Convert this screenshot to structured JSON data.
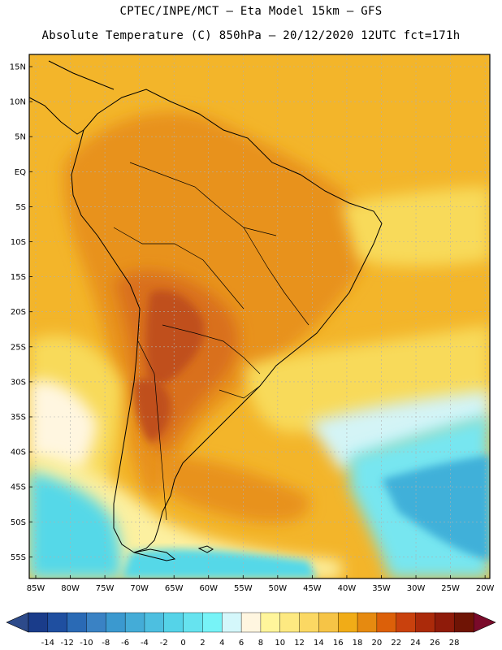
{
  "header": {
    "line1": "CPTEC/INPE/MCT —  Eta Model 15km — GFS",
    "line2": "Absolute Temperature (C) 850hPa — 20/12/2020 12UTC fct=171h"
  },
  "axes": {
    "lat_labels": [
      "15N",
      "10N",
      "5N",
      "EQ",
      "5S",
      "10S",
      "15S",
      "20S",
      "25S",
      "30S",
      "35S",
      "40S",
      "45S",
      "50S",
      "55S"
    ],
    "lon_labels": [
      "85W",
      "80W",
      "75W",
      "70W",
      "65W",
      "60W",
      "55W",
      "50W",
      "45W",
      "40W",
      "35W",
      "30W",
      "25W",
      "20W"
    ]
  },
  "colorbar": {
    "labels": [
      "-14",
      "-12",
      "-10",
      "-8",
      "-6",
      "-4",
      "-2",
      "0",
      "2",
      "4",
      "6",
      "8",
      "10",
      "12",
      "14",
      "16",
      "18",
      "20",
      "22",
      "24",
      "26",
      "28"
    ],
    "colors": [
      "#1a3c8a",
      "#1f4fa0",
      "#2a6ab5",
      "#3a82c4",
      "#3b99cf",
      "#44acd7",
      "#4dbfe0",
      "#55d3e8",
      "#66e3ef",
      "#77f3f7",
      "#d4f7fb",
      "#fff6e0",
      "#fff59b",
      "#fde981",
      "#fbd863",
      "#f6c446",
      "#f1ac17",
      "#e68a10",
      "#dc6009",
      "#c9410d",
      "#ab2a0a",
      "#8f1b0a",
      "#6f1405"
    ],
    "low_arrow_color": "#2d4a8a",
    "high_arrow_color": "#7a0a2a"
  },
  "map_colors": {
    "background": "#f3b52a",
    "warm": "#e8921a",
    "hot": "#d96f1c",
    "very_hot": "#c0501a",
    "yellow": "#f8da5a",
    "pale_yellow": "#fcf0a0",
    "cream": "#fff6e0",
    "ice": "#d4f4f6",
    "cyan": "#55d8e8",
    "cyan_light": "#77e6f0",
    "blue": "#3fb0d9"
  }
}
